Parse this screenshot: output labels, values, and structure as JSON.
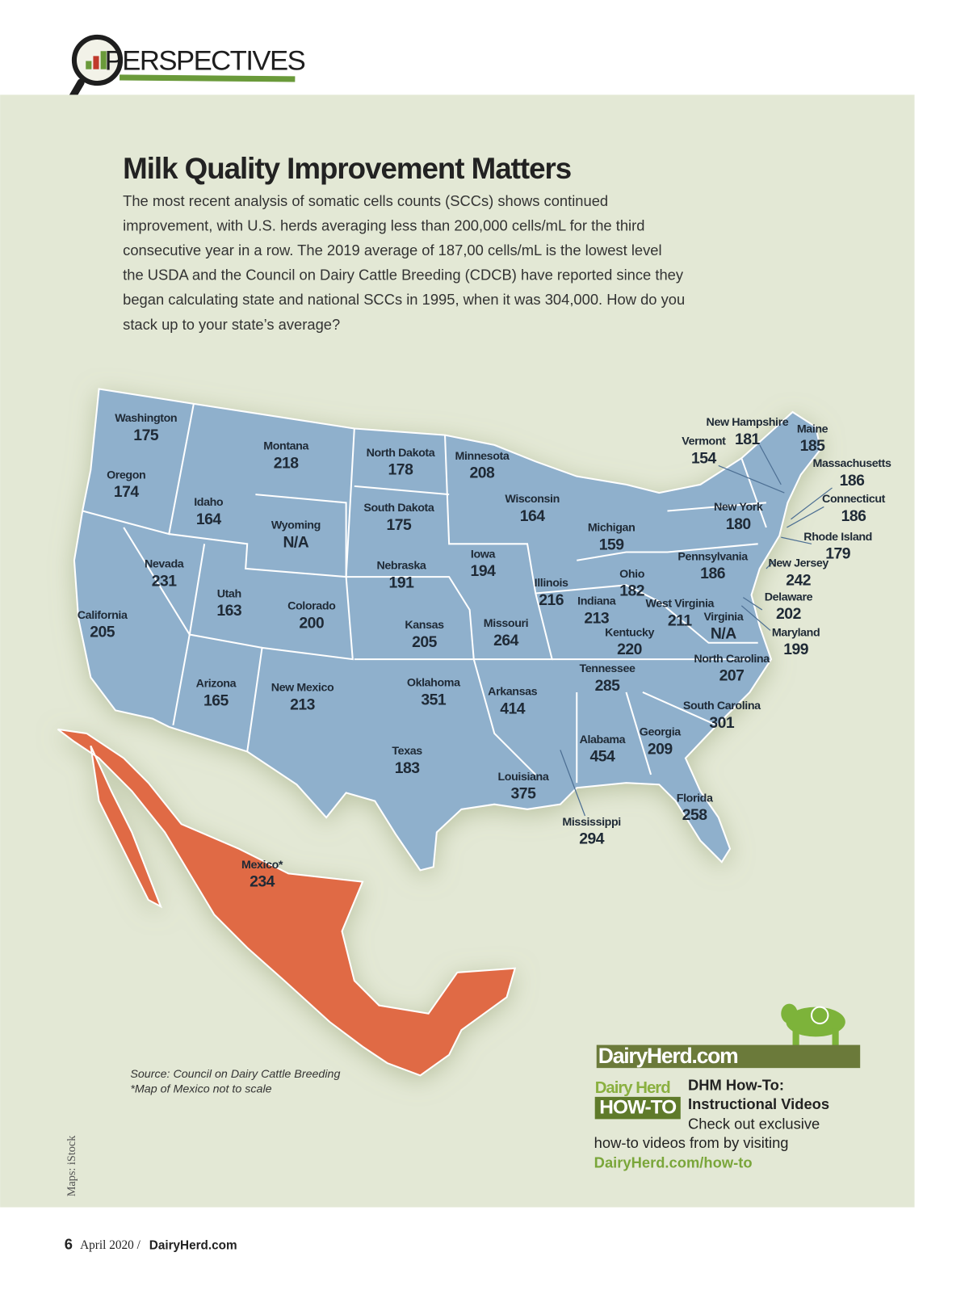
{
  "header": {
    "section": "PERSPECTIVES"
  },
  "article": {
    "title": "Milk Quality Improvement Matters",
    "body": [
      "The most recent analysis of somatic cells counts (SCCs) shows continued",
      "improvement, with U.S. herds averaging less than 200,000 cells/mL for the third",
      "consecutive year in a row. The 2019 average of 187,00 cells/mL is the lowest level",
      "the USDA and the Council on Dairy Cattle Breeding (CDCB) have reported since they",
      "began calculating state and national SCCs in 1995, when it was 304,000. How do you",
      "stack up to your state’s average?"
    ]
  },
  "map": {
    "states": [
      {
        "name": "Washington",
        "value": 175
      },
      {
        "name": "Oregon",
        "value": 174
      },
      {
        "name": "Idaho",
        "value": 164
      },
      {
        "name": "Montana",
        "value": 218
      },
      {
        "name": "Wyoming",
        "value": "N/A"
      },
      {
        "name": "Nevada",
        "value": 231
      },
      {
        "name": "Utah",
        "value": 163
      },
      {
        "name": "California",
        "value": 205
      },
      {
        "name": "Colorado",
        "value": 200
      },
      {
        "name": "Arizona",
        "value": 165
      },
      {
        "name": "New Mexico",
        "value": 213
      },
      {
        "name": "North Dakota",
        "value": 178
      },
      {
        "name": "South Dakota",
        "value": 175
      },
      {
        "name": "Nebraska",
        "value": 191
      },
      {
        "name": "Kansas",
        "value": 205
      },
      {
        "name": "Oklahoma",
        "value": 351
      },
      {
        "name": "Texas",
        "value": 183
      },
      {
        "name": "Minnesota",
        "value": 208
      },
      {
        "name": "Iowa",
        "value": 194
      },
      {
        "name": "Missouri",
        "value": 264
      },
      {
        "name": "Arkansas",
        "value": 414
      },
      {
        "name": "Louisiana",
        "value": 375
      },
      {
        "name": "Wisconsin",
        "value": 164
      },
      {
        "name": "Illinois",
        "value": 216
      },
      {
        "name": "Michigan",
        "value": 159
      },
      {
        "name": "Indiana",
        "value": 213
      },
      {
        "name": "Ohio",
        "value": 182
      },
      {
        "name": "Kentucky",
        "value": 220
      },
      {
        "name": "Tennessee",
        "value": 285
      },
      {
        "name": "Mississippi",
        "value": 294
      },
      {
        "name": "Alabama",
        "value": 454
      },
      {
        "name": "Georgia",
        "value": 209
      },
      {
        "name": "Florida",
        "value": 258
      },
      {
        "name": "South Carolina",
        "value": 301
      },
      {
        "name": "North Carolina",
        "value": 207
      },
      {
        "name": "Virginia",
        "value": "N/A"
      },
      {
        "name": "West Virginia",
        "value": 211
      },
      {
        "name": "Pennsylvania",
        "value": 186
      },
      {
        "name": "New York",
        "value": 180
      },
      {
        "name": "Vermont",
        "value": 154
      },
      {
        "name": "New Hampshire",
        "value": 181
      },
      {
        "name": "Maine",
        "value": 185
      },
      {
        "name": "Massachusetts",
        "value": 186
      },
      {
        "name": "Connecticut",
        "value": 186
      },
      {
        "name": "Rhode Island",
        "value": 179
      },
      {
        "name": "New Jersey",
        "value": 242
      },
      {
        "name": "Delaware",
        "value": 202
      },
      {
        "name": "Maryland",
        "value": 199
      }
    ],
    "mexico": {
      "name": "Mexico*",
      "value": 234
    },
    "source": [
      "Source: Council on Dairy Cattle Breeding",
      "*Map of Mexico not to scale"
    ],
    "credit": "Maps: iStock"
  },
  "promo": {
    "logo": "DairyHerd.com",
    "brand": "Dairy Herd",
    "badge": "HOW-TO",
    "heading": [
      "DHM How-To:",
      "Instructional Videos"
    ],
    "text": [
      "Check out exclusive",
      "how-to videos from by visiting"
    ],
    "link": "DairyHerd.com/how-to"
  },
  "footer": {
    "page": "6",
    "issue": "April 2020 /",
    "site": "DairyHerd.com"
  }
}
